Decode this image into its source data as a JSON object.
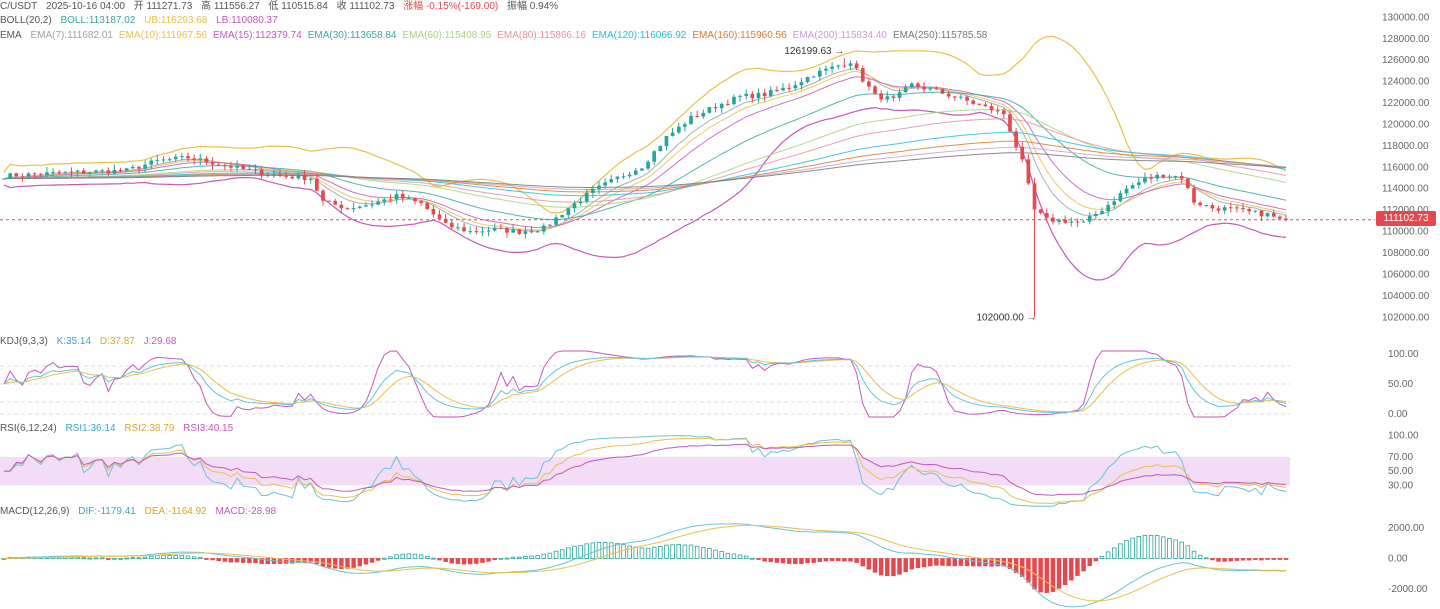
{
  "header": {
    "line1": {
      "pair": "C/USDT",
      "datetime": "2025-10-16 04:00",
      "open": "开 111271.73",
      "high": "高 111556.27",
      "low": "低 110515.84",
      "close": "收 111102.73",
      "change": "涨幅 -0.15%(-169.00)",
      "amplitude": "振幅 0.94%"
    },
    "boll": {
      "name": "BOLL(20,2)",
      "mid": "BOLL:113187.02",
      "ub": "UB:116293.68",
      "lb": "LB:110080.37"
    },
    "ema": {
      "name": "EMA",
      "items": [
        {
          "text": "EMA(7):111682.01",
          "color": "#9aa0a6"
        },
        {
          "text": "EMA(10):111967.56",
          "color": "#e8c14a"
        },
        {
          "text": "EMA(15):112379.74",
          "color": "#c25ab8"
        },
        {
          "text": "EMA(30):113658.84",
          "color": "#3aa6a0"
        },
        {
          "text": "EMA(60):115408.95",
          "color": "#a7d47a"
        },
        {
          "text": "EMA(80):115866.16",
          "color": "#e890a0"
        },
        {
          "text": "EMA(120):116066.92",
          "color": "#21c1d6"
        },
        {
          "text": "EMA(160):115960.56",
          "color": "#d97a2b"
        },
        {
          "text": "EMA(200):115834.40",
          "color": "#c79fd1"
        },
        {
          "text": "EMA(250):115785.58",
          "color": "#777777"
        }
      ]
    }
  },
  "kdj": {
    "name": "KDJ(9,3,3)",
    "k": "K:35.14",
    "d": "D:37.87",
    "j": "J:29.68"
  },
  "rsi": {
    "name": "RSI(6,12,24)",
    "rsi1": "RSI1:36.14",
    "rsi2": "RSI2:38.79",
    "rsi3": "RSI3:40.15"
  },
  "macd": {
    "name": "MACD(12,26,9)",
    "dif": "DIF:-1179.41",
    "dea": "DEA:-1164.92",
    "macd": "MACD:-28.98"
  },
  "price_tag": "111102.73",
  "high_marker": "126199.63",
  "low_marker": "102000.00",
  "colors": {
    "up": "#26a69a",
    "down": "#e5484d",
    "boll": "#e8c14a",
    "bollLB": "#c25ab8",
    "k": "#69c3d6",
    "d": "#e8c14a",
    "j": "#c25ab8",
    "rsiBand": "#f3dcf6"
  },
  "chart_data": {
    "type": "candlestick",
    "price_axis": {
      "ticks": [
        "130000.00",
        "128000.00",
        "126000.00",
        "124000.00",
        "122000.00",
        "120000.00",
        "118000.00",
        "116000.00",
        "114000.00",
        "112000.00",
        "110000.00",
        "108000.00",
        "106000.00",
        "104000.00",
        "102000.00"
      ],
      "ylim": [
        101000,
        130500
      ]
    },
    "kdj_axis": {
      "ticks": [
        "100.00",
        "50.00",
        "0.00"
      ],
      "ylim": [
        -10,
        110
      ]
    },
    "rsi_axis": {
      "ticks": [
        "100.00",
        "70.00",
        "50.00",
        "30.00"
      ],
      "ylim": [
        15,
        105
      ]
    },
    "macd_axis": {
      "ticks": [
        "2000.00",
        "0.00",
        "-2000.00"
      ],
      "ylim": [
        -3000,
        2800
      ]
    },
    "close_anchors": [
      [
        0,
        115200
      ],
      [
        10,
        115500
      ],
      [
        20,
        115700
      ],
      [
        25,
        116600
      ],
      [
        30,
        116900
      ],
      [
        36,
        116200
      ],
      [
        40,
        115700
      ],
      [
        45,
        115200
      ],
      [
        50,
        115000
      ],
      [
        52,
        112800
      ],
      [
        56,
        112200
      ],
      [
        60,
        112600
      ],
      [
        64,
        113300
      ],
      [
        68,
        112600
      ],
      [
        72,
        110600
      ],
      [
        76,
        110000
      ],
      [
        80,
        110200
      ],
      [
        84,
        110000
      ],
      [
        88,
        110300
      ],
      [
        92,
        112200
      ],
      [
        96,
        113800
      ],
      [
        100,
        115000
      ],
      [
        104,
        116100
      ],
      [
        108,
        118800
      ],
      [
        112,
        120600
      ],
      [
        116,
        121700
      ],
      [
        120,
        122600
      ],
      [
        124,
        122800
      ],
      [
        128,
        123500
      ],
      [
        132,
        124700
      ],
      [
        136,
        125500
      ],
      [
        138,
        125900
      ],
      [
        140,
        124200
      ],
      [
        142,
        122700
      ],
      [
        145,
        122300
      ],
      [
        148,
        123700
      ],
      [
        152,
        123100
      ],
      [
        156,
        122400
      ],
      [
        160,
        121600
      ],
      [
        163,
        121000
      ],
      [
        166,
        116500
      ],
      [
        168,
        112000
      ],
      [
        170,
        111100
      ],
      [
        173,
        111000
      ],
      [
        176,
        110800
      ],
      [
        180,
        112500
      ],
      [
        183,
        114000
      ],
      [
        186,
        114900
      ],
      [
        189,
        115300
      ],
      [
        192,
        115100
      ],
      [
        194,
        112800
      ],
      [
        197,
        112200
      ],
      [
        200,
        112100
      ],
      [
        203,
        111800
      ],
      [
        206,
        111600
      ],
      [
        208,
        111100
      ]
    ],
    "extremes": {
      "high": {
        "index": 137,
        "value": 126199.63
      },
      "low": {
        "index": 168,
        "value": 102000.0
      }
    },
    "last_close": 111102.73
  }
}
